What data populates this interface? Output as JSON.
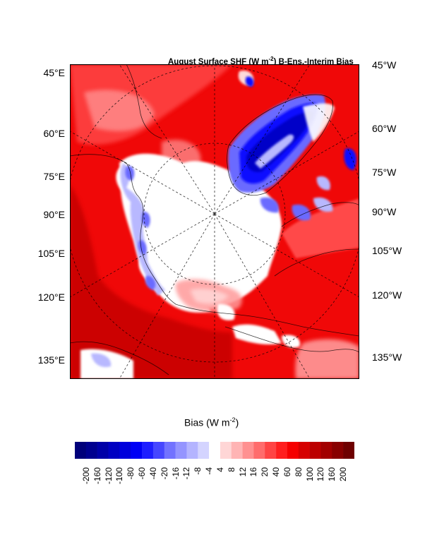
{
  "title": {
    "pre": "August Surface SHF (W m",
    "sup": "-2",
    "post": ") B-Ens.-Interim Bias"
  },
  "left_labels": [
    "45°E",
    "60°E",
    "75°E",
    "90°E",
    "105°E",
    "120°E",
    "135°E"
  ],
  "right_labels": [
    "45°W",
    "60°W",
    "75°W",
    "90°W",
    "105°W",
    "120°W",
    "135°W"
  ],
  "colorbar": {
    "title_pre": "Bias (W m",
    "title_sup": "-2",
    "title_post": ")",
    "ticks": [
      "-200",
      "-160",
      "-120",
      "-100",
      "-80",
      "-60",
      "-40",
      "-20",
      "-16",
      "-12",
      "-8",
      "-4",
      "4",
      "8",
      "12",
      "16",
      "20",
      "40",
      "60",
      "80",
      "100",
      "120",
      "160",
      "200"
    ],
    "colors": [
      "#00007a",
      "#00008f",
      "#0000a8",
      "#0000c2",
      "#0000dc",
      "#0000f5",
      "#1e1eff",
      "#4646ff",
      "#7272ff",
      "#9494ff",
      "#b4b4ff",
      "#d4d4ff",
      "#ffffff",
      "#ffd6d6",
      "#ffb4b4",
      "#ff9090",
      "#ff6c6c",
      "#ff4444",
      "#ff1e1e",
      "#f50000",
      "#d60000",
      "#bc0000",
      "#a20000",
      "#880000",
      "#6e0000"
    ]
  },
  "map_colors": {
    "strong_red": "#f00808",
    "dark_red": "#c60000",
    "mid_red": "#ff4848",
    "light_red": "#ff9a9a",
    "pale_red": "#ffd0d0",
    "white": "#ffffff",
    "light_blue": "#b8b8ff",
    "mid_blue": "#6a6aff",
    "strong_blue": "#1010ff",
    "dark_blue": "#0000c8"
  }
}
